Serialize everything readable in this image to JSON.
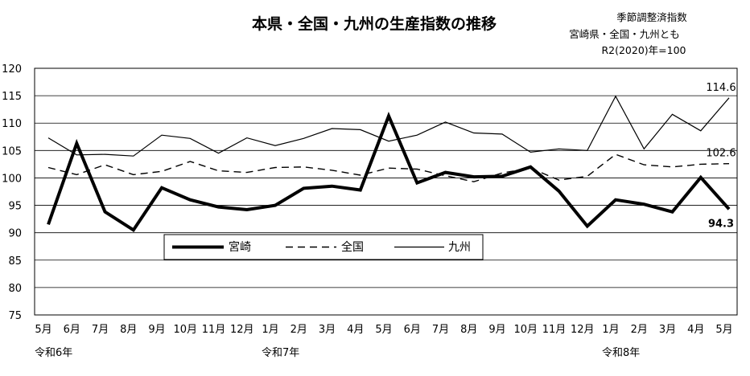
{
  "title": "本県・全国・九州の生産指数の推移",
  "notes": [
    "季節調整済指数",
    "宮崎県・全国・九州とも",
    "R2(2020)年=100"
  ],
  "chart_data": {
    "type": "line",
    "title": "本県・全国・九州の生産指数の推移",
    "categories": [
      "5月",
      "6月",
      "7月",
      "8月",
      "9月",
      "10月",
      "11月",
      "12月",
      "1月",
      "2月",
      "3月",
      "4月",
      "5月",
      "6月",
      "7月",
      "8月",
      "9月",
      "10月",
      "11月",
      "12月",
      "1月",
      "2月",
      "3月",
      "4月",
      "5月"
    ],
    "era_labels": [
      {
        "label": "令和6年",
        "index": 0
      },
      {
        "label": "令和7年",
        "index": 8
      },
      {
        "label": "令和8年",
        "index": 20
      }
    ],
    "ylim": [
      75,
      120
    ],
    "yticks": [
      75,
      80,
      85,
      90,
      95,
      100,
      105,
      110,
      115,
      120
    ],
    "grid": "horizontal",
    "legend_position": "bottom-left-inside",
    "series": [
      {
        "name": "宮崎",
        "style": "thick-solid",
        "color": "#000000",
        "values": [
          91.5,
          106.3,
          93.8,
          90.5,
          98.2,
          96.0,
          94.7,
          94.2,
          95.0,
          98.1,
          98.5,
          97.8,
          111.3,
          99.1,
          101.0,
          100.2,
          100.3,
          102.0,
          97.6,
          91.2,
          96.0,
          95.2,
          93.8,
          100.1,
          94.3
        ]
      },
      {
        "name": "全国",
        "style": "dashed",
        "color": "#000000",
        "values": [
          101.9,
          100.6,
          102.4,
          100.6,
          101.2,
          103.0,
          101.3,
          101.0,
          101.9,
          102.0,
          101.4,
          100.5,
          101.8,
          101.6,
          100.4,
          99.3,
          100.9,
          101.8,
          99.6,
          100.3,
          104.3,
          102.4,
          102.0,
          102.5,
          102.6
        ]
      },
      {
        "name": "九州",
        "style": "thin-solid",
        "color": "#000000",
        "values": [
          107.3,
          104.2,
          104.3,
          104.0,
          107.8,
          107.2,
          104.5,
          107.3,
          105.9,
          107.2,
          109.0,
          108.8,
          106.7,
          107.8,
          110.2,
          108.2,
          108.0,
          104.7,
          105.3,
          105.0,
          114.9,
          105.3,
          111.6,
          108.6,
          114.6
        ]
      }
    ],
    "data_labels": [
      {
        "series": "九州",
        "index": 24,
        "text": "114.6"
      },
      {
        "series": "全国",
        "index": 24,
        "text": "102.6"
      },
      {
        "series": "宮崎",
        "index": 24,
        "text": "94.3"
      }
    ]
  }
}
